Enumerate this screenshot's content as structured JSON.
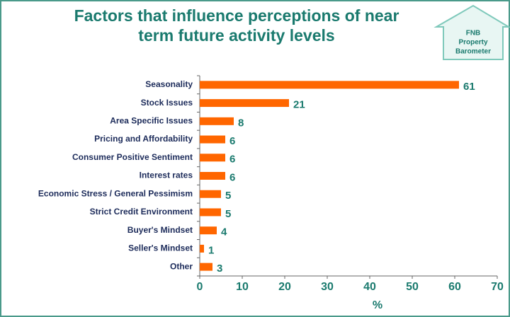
{
  "chart_data": {
    "type": "bar",
    "orientation": "horizontal",
    "title": [
      "Factors that influence perceptions of near",
      "term future activity levels"
    ],
    "logo": [
      "FNB",
      "Property",
      "Barometer"
    ],
    "categories": [
      "Seasonality",
      "Stock Issues",
      "Area Specific Issues",
      "Pricing and Affordability",
      "Consumer Positive Sentiment",
      "Interest rates",
      "Economic Stress / General Pessimism",
      "Strict Credit Environment",
      "Buyer's Mindset",
      "Seller's Mindset",
      "Other"
    ],
    "values": [
      61,
      21,
      8,
      6,
      6,
      6,
      5,
      5,
      4,
      1,
      3
    ],
    "color": "#ff6600",
    "xlabel": "%",
    "xlim": [
      0,
      70
    ],
    "xticks": [
      0,
      10,
      20,
      30,
      40,
      50,
      60,
      70
    ]
  }
}
